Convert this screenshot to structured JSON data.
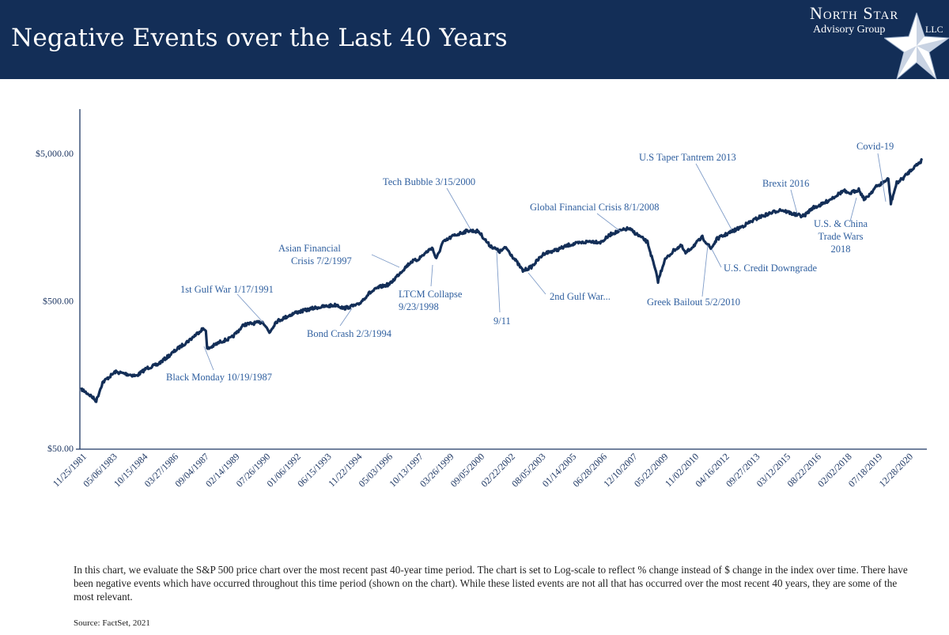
{
  "header": {
    "title": "Negative Events over the Last 40 Years",
    "logo": {
      "line1": "North Star",
      "line2": "Advisory Group",
      "line3": "LLC"
    }
  },
  "colors": {
    "header_bg": "#132e57",
    "line": "#132e57",
    "annotation": "#2f5f9f"
  },
  "chart_data": {
    "type": "line",
    "y_scale": "log",
    "ylim": [
      50,
      5000
    ],
    "y_ticks": [
      "$50.00",
      "$500.00",
      "$5,000.00"
    ],
    "y_tick_values": [
      50,
      500,
      5000
    ],
    "x_tick_labels": [
      "11/25/1981",
      "05/06/1983",
      "10/15/1984",
      "03/27/1986",
      "09/04/1987",
      "02/14/1989",
      "07/26/1990",
      "01/06/1992",
      "06/15/1993",
      "11/22/1994",
      "05/03/1996",
      "10/13/1997",
      "03/26/1999",
      "09/05/2000",
      "02/22/2002",
      "08/05/2003",
      "01/14/2005",
      "06/28/2006",
      "12/10/2007",
      "05/22/2009",
      "11/02/2010",
      "04/16/2012",
      "09/27/2013",
      "03/12/2015",
      "08/22/2016",
      "02/02/2018",
      "07/18/2019",
      "12/28/2020"
    ],
    "series": [
      {
        "x": [
          1981.9,
          1982.3,
          1982.6,
          1982.9,
          1983.5,
          1984.0,
          1984.5,
          1985.0,
          1985.5,
          1986.0,
          1986.5,
          1987.0,
          1987.6,
          1987.79,
          1987.85,
          1988.5,
          1989.0,
          1989.6,
          1990.5,
          1990.8,
          1991.1,
          1992.0,
          1993.0,
          1994.0,
          1994.3,
          1995.0,
          1995.5,
          1996.0,
          1996.5,
          1997.0,
          1997.5,
          1997.8,
          1998.5,
          1998.7,
          1999.0,
          1999.5,
          2000.2,
          2000.7,
          2001.2,
          2001.7,
          2002.0,
          2002.5,
          2002.8,
          2003.2,
          2003.8,
          2004.5,
          2005.0,
          2006.0,
          2006.5,
          2007.0,
          2007.8,
          2008.3,
          2008.7,
          2009.0,
          2009.2,
          2009.5,
          2010.0,
          2010.3,
          2010.5,
          2011.3,
          2011.7,
          2012.0,
          2013.0,
          2014.0,
          2015.0,
          2015.7,
          2016.1,
          2016.5,
          2017.0,
          2018.0,
          2018.2,
          2018.7,
          2018.98,
          2019.5,
          2020.1,
          2020.22,
          2020.5,
          2020.8,
          2021.2,
          2021.7
        ],
        "values": [
          126,
          115,
          105,
          140,
          165,
          160,
          155,
          175,
          185,
          210,
          240,
          270,
          320,
          320,
          235,
          265,
          280,
          345,
          360,
          305,
          360,
          415,
          450,
          470,
          445,
          470,
          560,
          620,
          650,
          780,
          920,
          950,
          1150,
          960,
          1240,
          1380,
          1500,
          1480,
          1200,
          1080,
          1150,
          920,
          800,
          850,
          1050,
          1120,
          1200,
          1270,
          1250,
          1430,
          1550,
          1380,
          1250,
          880,
          680,
          940,
          1120,
          1180,
          1050,
          1350,
          1130,
          1320,
          1550,
          1850,
          2080,
          1920,
          1880,
          2130,
          2270,
          2800,
          2650,
          2850,
          2420,
          2950,
          3350,
          2300,
          3150,
          3400,
          3900,
          4500
        ]
      }
    ],
    "annotations": [
      {
        "text": "Black Monday 10/19/1987"
      },
      {
        "text": "1st Gulf War 1/17/1991"
      },
      {
        "text": "Bond Crash 2/3/1994"
      },
      {
        "text": "Asian Financial",
        "text2": "Crisis 7/2/1997"
      },
      {
        "text": "LTCM Collapse",
        "text2": "9/23/1998"
      },
      {
        "text": "Tech Bubble 3/15/2000"
      },
      {
        "text": "9/11"
      },
      {
        "text": "2nd Gulf War..."
      },
      {
        "text": "Global Financial Crisis 8/1/2008"
      },
      {
        "text": "Greek Bailout 5/2/2010"
      },
      {
        "text": "U.S Taper Tantrem 2013"
      },
      {
        "text": "U.S. Credit Downgrade"
      },
      {
        "text": "Brexit 2016"
      },
      {
        "text": "U.S. & China",
        "text2": "Trade Wars",
        "text3": "2018"
      },
      {
        "text": "Covid-19"
      }
    ]
  },
  "footnote": "In this chart, we evaluate the S&P 500 price chart over the most recent past 40-year time period. The chart is set to Log-scale to reflect % change instead of $ change in the index over time. There have been negative events which have occurred throughout this time period (shown on the chart).  While these listed events are not all that has occurred over the most recent 40 years, they are some of the most relevant.",
  "source": "Source: FactSet, 2021"
}
